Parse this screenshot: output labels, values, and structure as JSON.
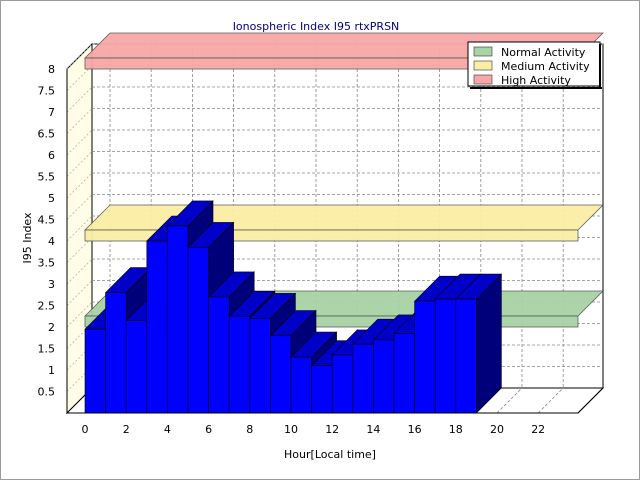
{
  "chart_data": {
    "type": "bar",
    "title": "Ionospheric Index I95 rtxPRSN",
    "xlabel": "Hour[Local time]",
    "ylabel": "I95 Index",
    "x_ticks": [
      "0",
      "2",
      "4",
      "6",
      "8",
      "10",
      "12",
      "14",
      "16",
      "18",
      "20",
      "22"
    ],
    "y_ticks": [
      "0.5",
      "1",
      "1.5",
      "2",
      "2.5",
      "3",
      "3.5",
      "4",
      "4.5",
      "5",
      "5.5",
      "6",
      "6.5",
      "7",
      "7.5",
      "8"
    ],
    "ylim": [
      0,
      8
    ],
    "xlim": [
      0,
      24
    ],
    "x": [
      0,
      1,
      2,
      3,
      4,
      5,
      6,
      7,
      8,
      9,
      10,
      11,
      12,
      13,
      14,
      15,
      16,
      17,
      18
    ],
    "values": [
      1.95,
      2.8,
      2.15,
      4.0,
      4.35,
      3.85,
      2.7,
      2.25,
      2.2,
      1.8,
      1.3,
      1.1,
      1.35,
      1.6,
      1.7,
      1.85,
      2.6,
      2.65,
      2.65
    ],
    "bar_color": "#0000ff",
    "bands": [
      {
        "name": "Normal Activity",
        "value": 2.0,
        "color": "#a7d3a5"
      },
      {
        "name": "Medium Activity",
        "value": 4.0,
        "color": "#fbeea4"
      },
      {
        "name": "High Activity",
        "value": 8.0,
        "color": "#f7a7a7"
      }
    ],
    "legend_position": "top-right",
    "grid": true
  }
}
